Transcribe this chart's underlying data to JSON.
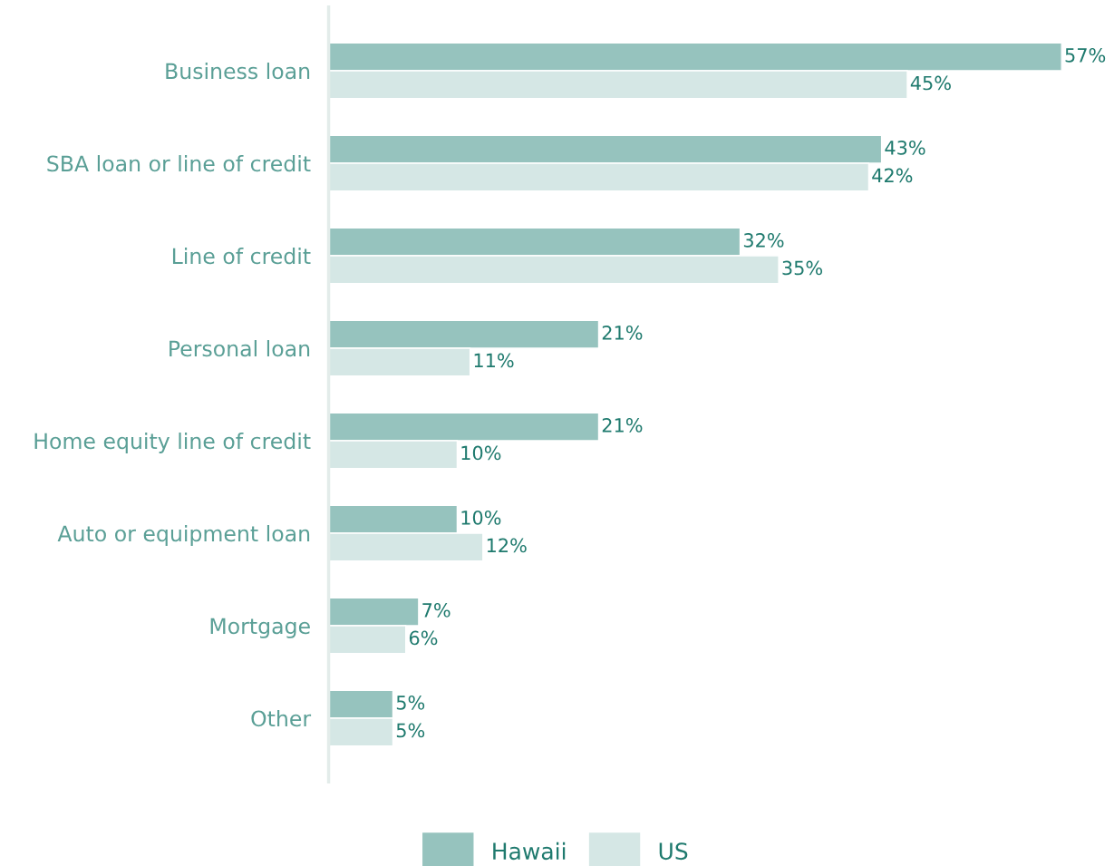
{
  "chart_data": {
    "type": "bar",
    "orientation": "horizontal",
    "categories": [
      "Business loan",
      "SBA loan or line of credit",
      "Line of credit",
      "Personal loan",
      "Home equity line of credit",
      "Auto or equipment loan",
      "Mortgage",
      "Other"
    ],
    "series": [
      {
        "name": "Hawaii",
        "color": "#96c3be",
        "values": [
          57,
          43,
          32,
          21,
          21,
          10,
          7,
          5
        ],
        "value_labels": [
          "57%",
          "43%",
          "32%",
          "21%",
          "21%",
          "10%",
          "7%",
          "5%"
        ]
      },
      {
        "name": "US",
        "color": "#d5e7e5",
        "values": [
          45,
          42,
          35,
          11,
          10,
          12,
          6,
          5
        ],
        "value_labels": [
          "45%",
          "42%",
          "35%",
          "11%",
          "10%",
          "12%",
          "6%",
          "5%"
        ]
      }
    ],
    "legend": "bottom",
    "grid": false
  }
}
